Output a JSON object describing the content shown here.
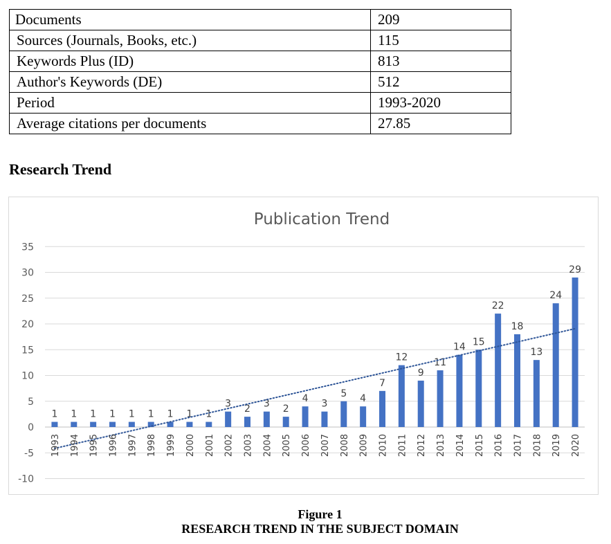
{
  "stats_table": {
    "rows": [
      {
        "label": "Documents",
        "value": "209"
      },
      {
        "label": "Sources (Journals, Books, etc.)",
        "value": "115"
      },
      {
        "label": "Keywords Plus (ID)",
        "value": "813"
      },
      {
        "label": "Author's Keywords (DE)",
        "value": "512"
      },
      {
        "label": "Period",
        "value": "1993-2020"
      },
      {
        "label": "Average citations per documents",
        "value": "27.85"
      }
    ]
  },
  "section_heading": "Research Trend",
  "chart_data": {
    "type": "bar",
    "title": "Publication Trend",
    "xlabel": "",
    "ylabel": "",
    "categories": [
      "1993",
      "1994",
      "1995",
      "1996",
      "1997",
      "1998",
      "1999",
      "2000",
      "2001",
      "2002",
      "2003",
      "2004",
      "2005",
      "2006",
      "2007",
      "2008",
      "2009",
      "2010",
      "2011",
      "2012",
      "2013",
      "2014",
      "2015",
      "2016",
      "2017",
      "2018",
      "2019",
      "2020"
    ],
    "values": [
      1,
      1,
      1,
      1,
      1,
      1,
      1,
      1,
      1,
      3,
      2,
      3,
      2,
      4,
      3,
      5,
      4,
      7,
      12,
      9,
      11,
      14,
      15,
      22,
      18,
      13,
      24,
      29
    ],
    "ylim": [
      -10,
      35
    ],
    "yticks": [
      -10,
      -5,
      0,
      5,
      10,
      15,
      20,
      25,
      30,
      35
    ],
    "grid": true,
    "trendline": {
      "type": "linear",
      "style": "dotted"
    },
    "colors": {
      "bar": "#4472c4",
      "trend": "#2e5597",
      "grid": "#d9d9d9",
      "text": "#595959",
      "title": "#595959"
    }
  },
  "caption": {
    "line1": "Figure 1",
    "line2": "RESEARCH TREND IN THE SUBJECT DOMAIN"
  }
}
